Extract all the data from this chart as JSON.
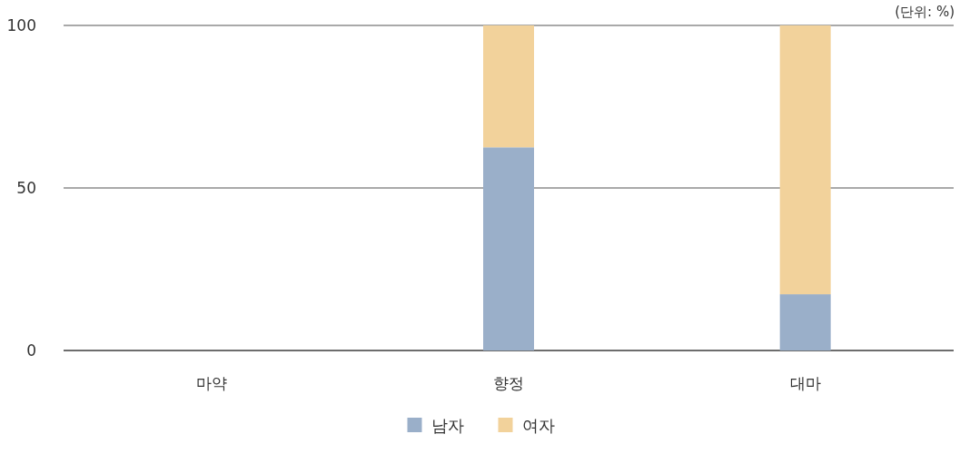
{
  "chart_data": {
    "type": "bar",
    "stacked": true,
    "categories": [
      "마약",
      "향정",
      "대마"
    ],
    "series": [
      {
        "name": "남자",
        "color": "#9aafc9",
        "values": [
          null,
          62.5,
          17.3
        ]
      },
      {
        "name": "여자",
        "color": "#f2d29b",
        "values": [
          null,
          37.5,
          82.7
        ]
      }
    ],
    "ylim": [
      0,
      100
    ],
    "yticks": [
      0,
      50,
      100
    ],
    "grid": "y",
    "legend": "bottom",
    "annotations": [
      "(단위: %)"
    ]
  }
}
